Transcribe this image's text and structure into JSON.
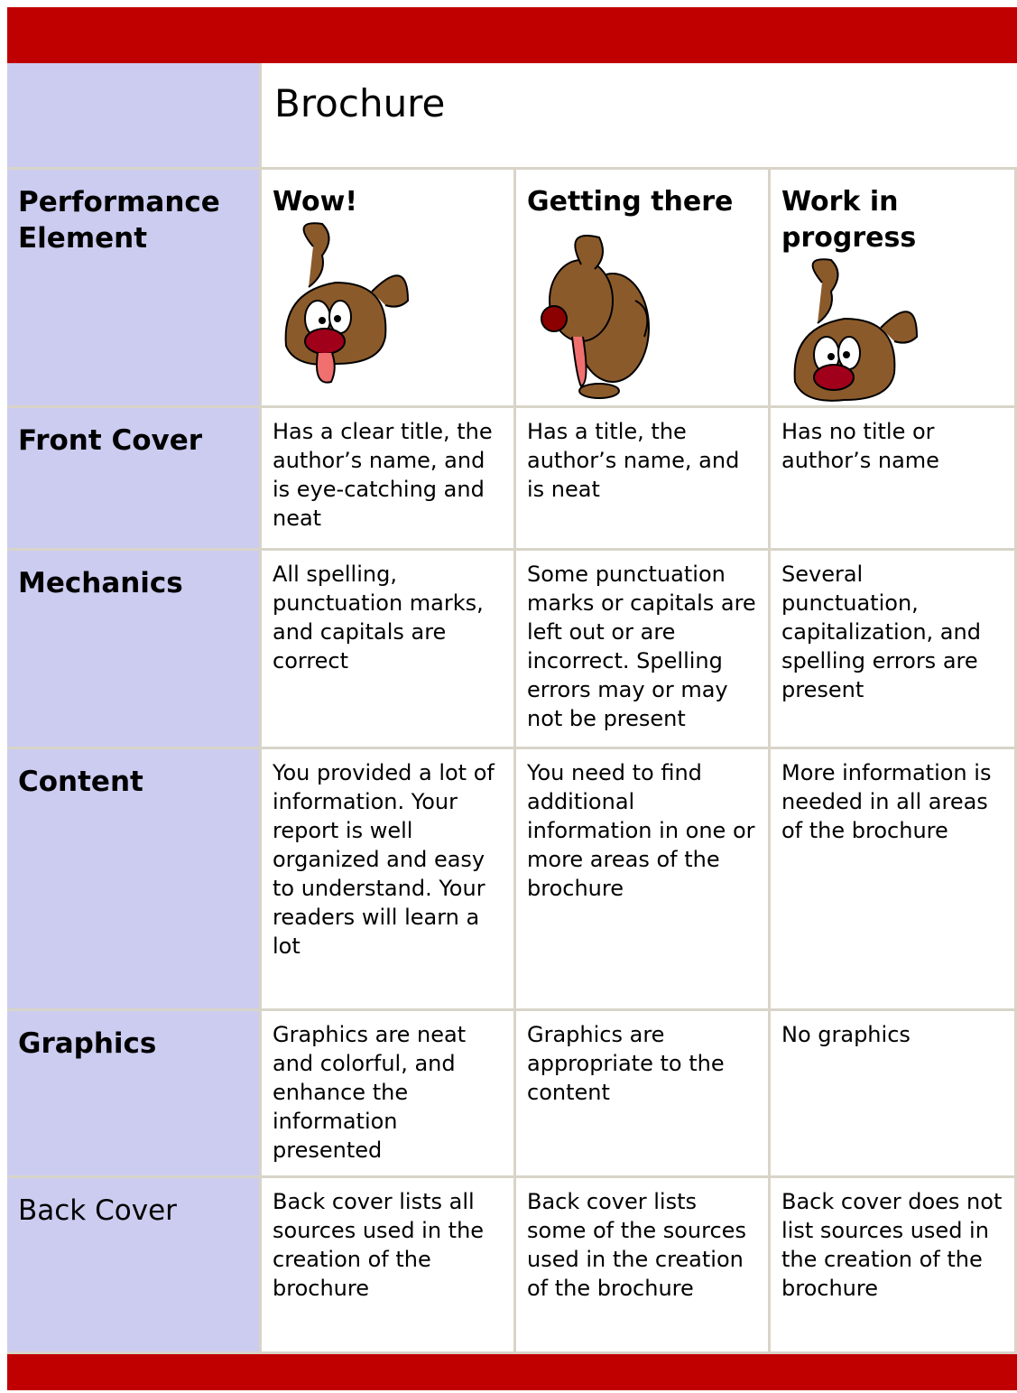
{
  "title": "Brochure",
  "table": {
    "header": [
      "Performance Element",
      "Wow!",
      "Getting there",
      "Work in progress"
    ],
    "rows": [
      [
        "Front Cover",
        "Has a clear title, the author’s name, and is eye-catching and neat",
        "Has a title, the author’s name, and is neat",
        "Has no title or author’s name"
      ],
      [
        "Mechanics",
        "All spelling, punctuation marks, and capitals are correct",
        "Some punctuation marks or capitals are left out or are incorrect. Spelling errors may or may not be present",
        "Several punctuation, capitalization, and spelling errors are present"
      ],
      [
        "Content",
        "You provided a lot of information. Your report is well organized and easy to understand. Your readers will learn a lot",
        "You need to find additional information in one or more areas of the brochure",
        "More information is needed in all areas of the brochure"
      ],
      [
        "Graphics",
        "Graphics are neat and colorful, and enhance the information presented",
        "Graphics are appropriate to the content",
        "No graphics"
      ],
      [
        "Back Cover",
        "Back cover lists all sources used in the creation of the brochure",
        "Back cover lists some of the sources used in the creation of the brochure",
        "Back cover does not  list sources used in the creation of the brochure"
      ]
    ]
  }
}
